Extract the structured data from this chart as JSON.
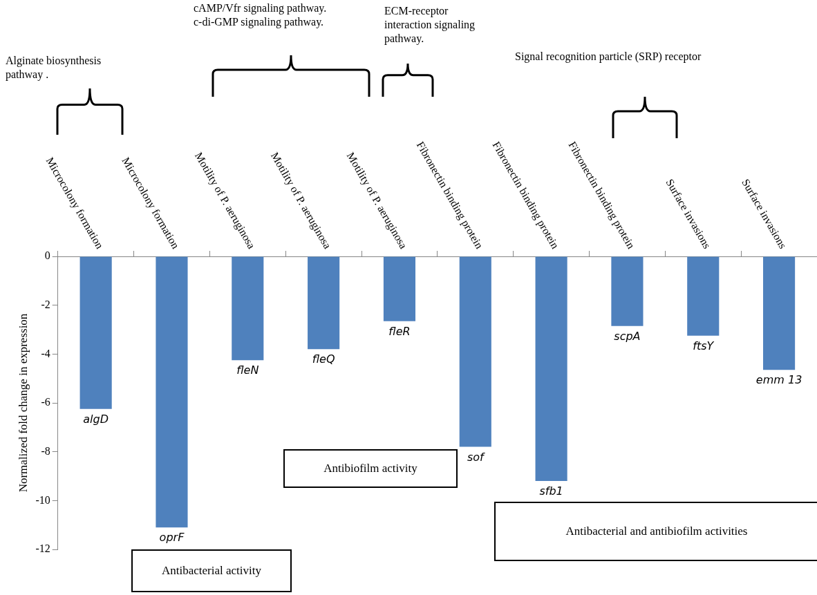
{
  "chart_data": {
    "type": "bar",
    "ylabel": "Normalized fold change in expression",
    "categories": [
      "algD",
      "oprF",
      "fleN",
      "fleQ",
      "fleR",
      "sof",
      "sfb1",
      "scpA",
      "ftsY",
      "emm 13"
    ],
    "values": [
      -6.25,
      -11.1,
      -4.25,
      -3.8,
      -2.65,
      -7.8,
      -9.2,
      -2.85,
      -3.25,
      -4.65
    ],
    "color": "#4f81bd",
    "ylim": [
      -12,
      0
    ],
    "yticks": [
      0,
      -2,
      -4,
      -6,
      -8,
      -10,
      -12
    ],
    "grid": false,
    "legend": false,
    "annotations": [
      "Microcolony formation",
      "Microcolony formation",
      "Motility of P. aeruginosa",
      "Motility of P. aeruginosa",
      "Motility of P. aeruginosa",
      "Fibronectin binding protein",
      "Fibronectin binding protein",
      "Fibronectin binding protein",
      "Surface invasions",
      "Surface invasions",
      "Alginate biosynthesis\npathway .",
      "cAMP/Vfr signaling pathway.\nc-di-GMP signaling pathway.",
      "ECM-receptor\n interaction signaling\npathway.",
      "Signal recognition particle (SRP) receptor",
      "Antibiofilm activity",
      "Antibacterial activity",
      "Antibacterial and antibiofilm activities"
    ]
  }
}
